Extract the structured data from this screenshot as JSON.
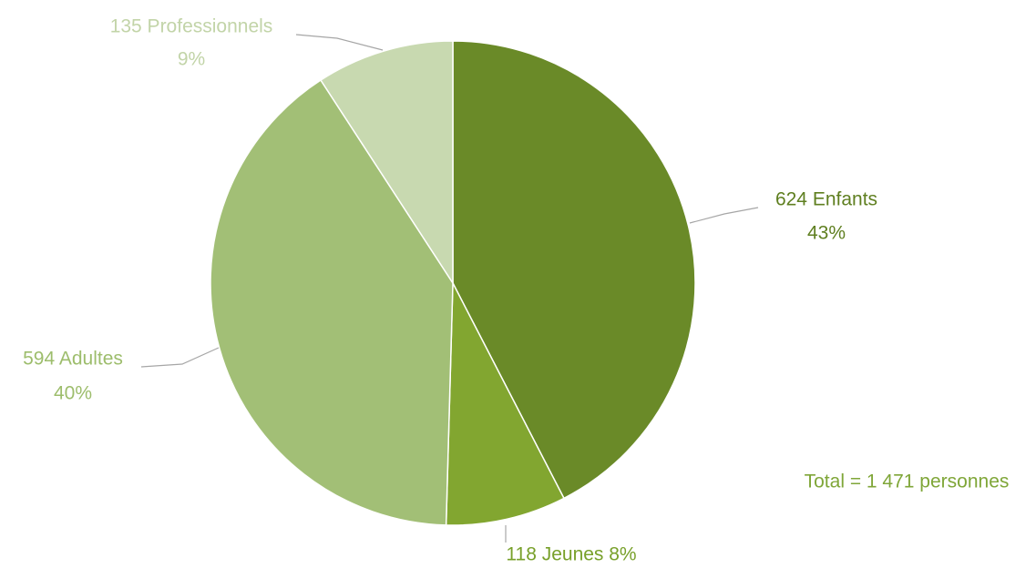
{
  "chart_data": {
    "type": "pie",
    "values": [
      624,
      118,
      594,
      135
    ],
    "labels": [
      [
        "624  Enfants",
        "43%"
      ],
      [
        "118  Jeunes 8%"
      ],
      [
        "594 Adultes",
        "40%"
      ],
      [
        "135 Professionnels",
        "9%"
      ]
    ],
    "colors": [
      "#6a8a28",
      "#82a630",
      "#a2bf76",
      "#c8d9b0"
    ],
    "label_colors": [
      "#5f7f20",
      "#78a02a",
      "#9dbd6c",
      "#c2d4a8"
    ],
    "total": "Total = 1 471 personnes",
    "total_color": "#7fa638"
  }
}
